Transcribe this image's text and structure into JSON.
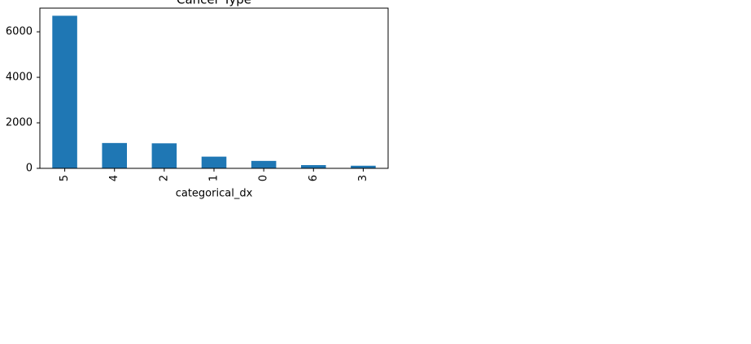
{
  "chart_data": {
    "type": "bar",
    "title": "Cancer Type",
    "x_label": "categorical_dx",
    "categories": [
      "5",
      "4",
      "2",
      "1",
      "0",
      "6",
      "3"
    ],
    "values": [
      6705,
      1113,
      1099,
      514,
      327,
      142,
      115
    ],
    "color": "#1f77b4",
    "ylim": [
      0,
      7040
    ],
    "yticks": [
      0,
      2000,
      4000,
      6000
    ],
    "grid": false
  }
}
